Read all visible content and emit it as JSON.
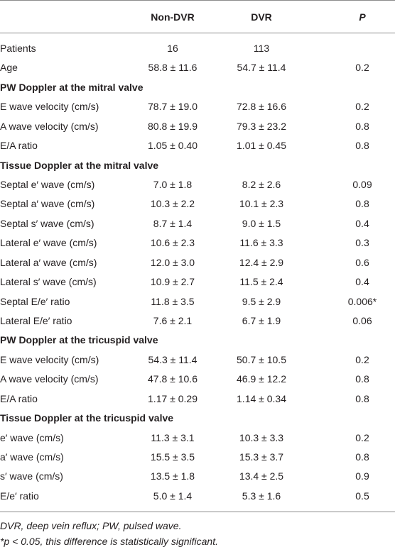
{
  "table": {
    "header": [
      "Non-DVR",
      "DVR",
      "P"
    ],
    "rows": [
      [
        "Patients",
        "16",
        "113",
        ""
      ],
      [
        "Age",
        "58.8 ± 11.6",
        "54.7 ± 11.4",
        "0.2"
      ],
      [
        "PW Doppler at the mitral valve"
      ],
      [
        "E wave velocity (cm/s)",
        "78.7 ± 19.0",
        "72.8 ± 16.6",
        "0.2"
      ],
      [
        "A wave velocity (cm/s)",
        "80.8 ± 19.9",
        "79.3 ± 23.2",
        "0.8"
      ],
      [
        "E/A ratio",
        "1.05 ± 0.40",
        "1.01 ± 0.45",
        "0.8"
      ],
      [
        "Tissue Doppler at the mitral valve"
      ],
      [
        "Septal e′ wave (cm/s)",
        "7.0 ± 1.8",
        "8.2 ± 2.6",
        "0.09"
      ],
      [
        "Septal a′ wave (cm/s)",
        "10.3 ± 2.2",
        "10.1 ± 2.3",
        "0.8"
      ],
      [
        "Septal s′ wave (cm/s)",
        "8.7 ± 1.4",
        "9.0 ± 1.5",
        "0.4"
      ],
      [
        "Lateral e′ wave (cm/s)",
        "10.6 ± 2.3",
        "11.6 ± 3.3",
        "0.3"
      ],
      [
        "Lateral a′ wave (cm/s)",
        "12.0 ± 3.0",
        "12.4 ± 2.9",
        "0.6"
      ],
      [
        "Lateral s′ wave (cm/s)",
        "10.9 ± 2.7",
        "11.5 ± 2.4",
        "0.4"
      ],
      [
        "Septal E/e′ ratio",
        "11.8 ± 3.5",
        "9.5 ± 2.9",
        "0.006*"
      ],
      [
        "Lateral E/e′ ratio",
        "7.6 ± 2.1",
        "6.7 ± 1.9",
        "0.06"
      ],
      [
        "PW Doppler at the tricuspid valve"
      ],
      [
        "E wave velocity (cm/s)",
        "54.3 ± 11.4",
        "50.7 ± 10.5",
        "0.2"
      ],
      [
        "A wave velocity (cm/s)",
        "47.8 ± 10.6",
        "46.9 ± 12.2",
        "0.8"
      ],
      [
        "E/A ratio",
        "1.17 ± 0.29",
        "1.14 ± 0.34",
        "0.8"
      ],
      [
        "Tissue Doppler at the tricuspid valve"
      ],
      [
        "e′ wave (cm/s)",
        "11.3 ± 3.1",
        "10.3 ± 3.3",
        "0.2"
      ],
      [
        "a′ wave (cm/s)",
        "15.5 ± 3.5",
        "15.3 ± 3.7",
        "0.8"
      ],
      [
        "s′ wave (cm/s)",
        "13.5 ± 1.8",
        "13.4 ± 2.5",
        "0.9"
      ],
      [
        "E/e′ ratio",
        "5.0 ± 1.4",
        "5.3 ± 1.6",
        "0.5"
      ]
    ],
    "footnotes": [
      "DVR, deep vein reflux; PW, pulsed wave.",
      "*p < 0.05, this difference is statistically significant."
    ]
  }
}
